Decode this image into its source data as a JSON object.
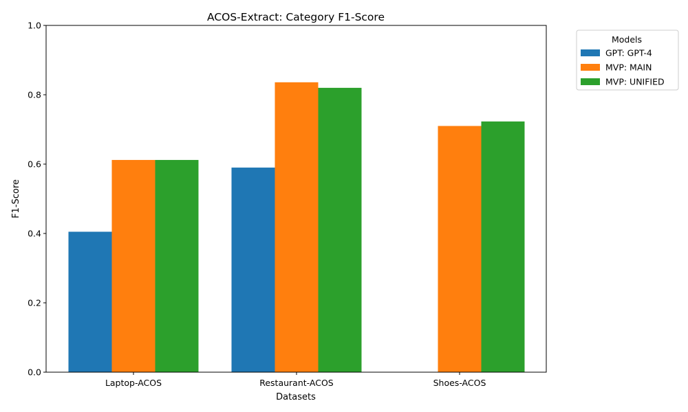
{
  "chart_data": {
    "type": "bar",
    "title": "ACOS-Extract: Category F1-Score",
    "xlabel": "Datasets",
    "ylabel": "F1-Score",
    "ylim": [
      0,
      1.0
    ],
    "yticks": [
      "0.0",
      "0.2",
      "0.4",
      "0.6",
      "0.8",
      "1.0"
    ],
    "categories": [
      "Laptop-ACOS",
      "Restaurant-ACOS",
      "Shoes-ACOS"
    ],
    "legend_title": "Models",
    "legend_position": "outside-top-right",
    "grid": false,
    "series": [
      {
        "name": "GPT: GPT-4",
        "color": "#1f77b4",
        "values": [
          0.405,
          0.59,
          null
        ]
      },
      {
        "name": "MVP: MAIN",
        "color": "#ff7f0e",
        "values": [
          0.612,
          0.836,
          0.71
        ]
      },
      {
        "name": "MVP: UNIFIED",
        "color": "#2ca02c",
        "values": [
          0.612,
          0.82,
          0.723
        ]
      }
    ]
  }
}
